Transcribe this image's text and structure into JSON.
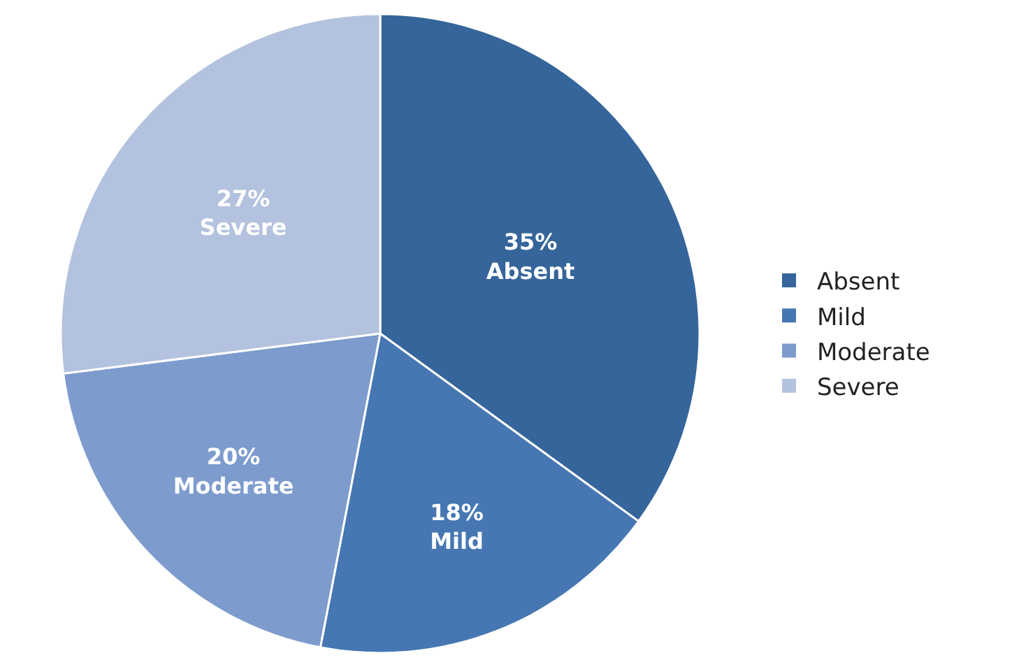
{
  "chart_data": {
    "type": "pie",
    "categories": [
      "Absent",
      "Mild",
      "Moderate",
      "Severe"
    ],
    "values": [
      35,
      18,
      20,
      27
    ],
    "value_labels": [
      "35%",
      "18%",
      "20%",
      "27%"
    ],
    "colors": [
      "#35659a",
      "#4677b3",
      "#7d9bcc",
      "#b3c2de"
    ],
    "legend": "right"
  }
}
